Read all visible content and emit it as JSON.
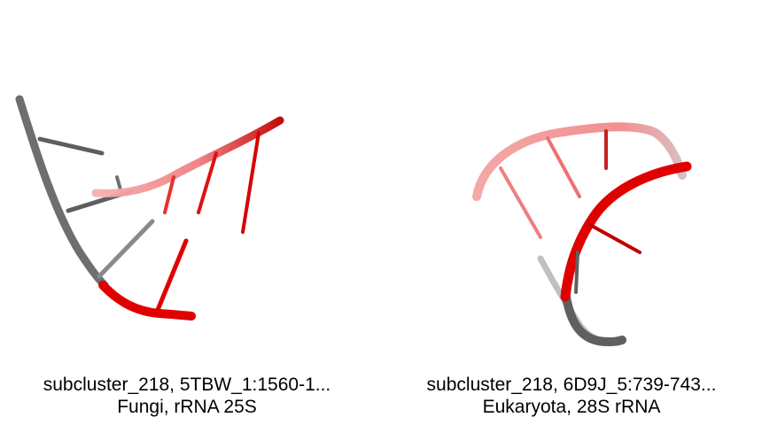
{
  "panels": [
    {
      "title": "subcluster_218, 5TBW_1:1560-1...",
      "subtitle": "Fungi, rRNA 25S",
      "colors": {
        "backbone_gray": "#6b6b6b",
        "backbone_red": "#e00000",
        "faded_red": "#f4a0a0"
      }
    },
    {
      "title": "subcluster_218, 6D9J_5:739-743...",
      "subtitle": "Eukaryota, 28S rRNA",
      "colors": {
        "backbone_gray": "#6b6b6b",
        "backbone_red": "#e00000",
        "faded_red": "#f4a0a0"
      }
    }
  ]
}
